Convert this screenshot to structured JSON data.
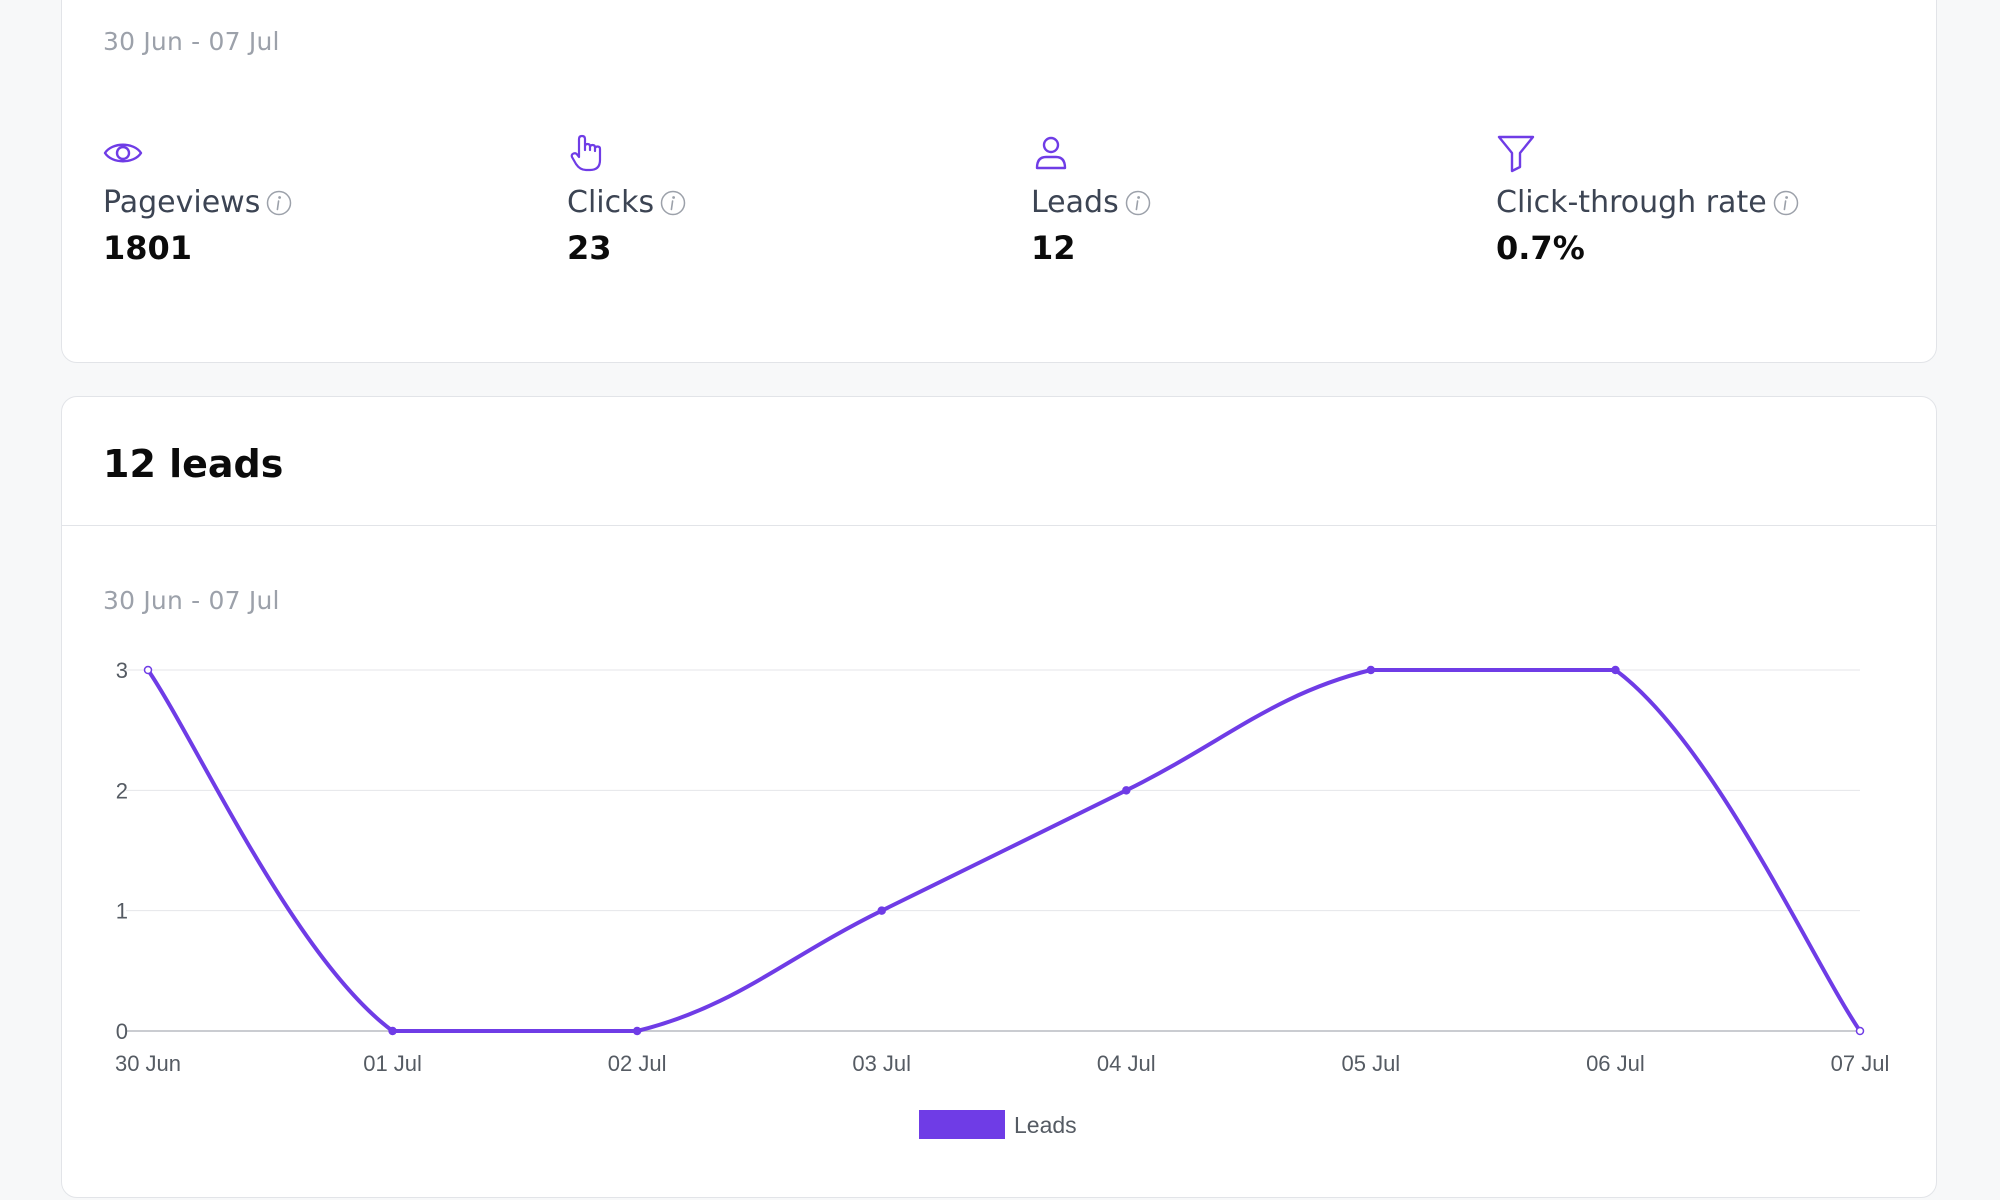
{
  "stats_card": {
    "date_range": "30 Jun - 07 Jul",
    "stats": [
      {
        "icon": "eye-icon",
        "label": "Pageviews",
        "value": "1801"
      },
      {
        "icon": "pointer-hand-icon",
        "label": "Clicks",
        "value": "23"
      },
      {
        "icon": "user-icon",
        "label": "Leads",
        "value": "12"
      },
      {
        "icon": "funnel-icon",
        "label": "Click-through rate",
        "value": "0.7%"
      }
    ]
  },
  "leads_card": {
    "title": "12 leads",
    "date_range": "30 Jun - 07 Jul"
  },
  "colors": {
    "accent": "#6f3ce6",
    "muted": "#9ca1aa"
  },
  "chart_data": {
    "type": "line",
    "categories": [
      "30 Jun",
      "01 Jul",
      "02 Jul",
      "03 Jul",
      "04 Jul",
      "05 Jul",
      "06 Jul",
      "07 Jul"
    ],
    "series": [
      {
        "name": "Leads",
        "values": [
          3,
          0,
          0,
          1,
          2,
          3,
          3,
          0
        ]
      }
    ],
    "yticks": [
      "0",
      "1",
      "2",
      "3"
    ],
    "ylim": [
      0,
      3
    ],
    "grid": true,
    "legend": "bottom",
    "title": "",
    "xlabel": "",
    "ylabel": ""
  }
}
